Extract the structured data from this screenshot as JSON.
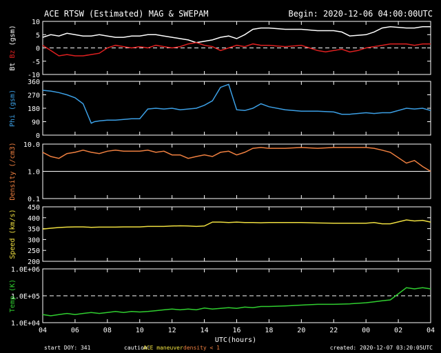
{
  "header": {
    "title": "ACE RTSW (Estimated) MAG & SWEPAM",
    "begin": "Begin: 2020-12-06 04:00:00UTC"
  },
  "footer": {
    "start_doy": "start DOY: 341",
    "caution_label": "caution:",
    "caution_ace": "ACE maneuver",
    "caution_density": "density < 1",
    "created": "created: 2020-12-07 03:20:05UTC"
  },
  "colors": {
    "bt": "#ffffff",
    "bz": "#e02020",
    "phi": "#3ca0e6",
    "density": "#f08040",
    "speed": "#f0e040",
    "temp": "#30d030",
    "caution_ace": "#f0e040",
    "caution_density": "#f08040"
  },
  "chart_data": {
    "type": "line",
    "x_ticks": [
      "04",
      "06",
      "08",
      "10",
      "12",
      "14",
      "16",
      "18",
      "20",
      "22",
      "00",
      "02",
      "04"
    ],
    "x_range_hours": [
      0,
      24
    ],
    "xlabel": "UTC(hours)",
    "panels": [
      {
        "id": "mag",
        "ylabel_parts": [
          "Bt",
          "Bz",
          "(gsm)"
        ],
        "ylim": [
          -10,
          10
        ],
        "yticks": [
          "10",
          "5",
          "0",
          "-5",
          "-10"
        ],
        "reference_line": 0,
        "series": [
          {
            "name": "Bt",
            "color_key": "bt",
            "x": [
              0,
              0.5,
              1,
              1.5,
              2,
              2.5,
              3,
              3.5,
              4,
              4.5,
              5,
              5.5,
              6,
              6.5,
              7,
              7.5,
              8,
              8.5,
              9,
              9.5,
              10,
              10.5,
              11,
              11.5,
              12,
              12.5,
              13,
              13.5,
              14,
              15,
              16,
              17,
              18,
              18.5,
              19,
              20,
              20.5,
              21,
              21.5,
              22.5,
              23,
              23.5,
              24
            ],
            "y": [
              4,
              5,
              4.5,
              5.5,
              5,
              4.5,
              4.5,
              5,
              4.5,
              4,
              4,
              4.5,
              4.5,
              5,
              5,
              4.5,
              4,
              3.5,
              3,
              2,
              2.5,
              3,
              4,
              4.5,
              3.5,
              5,
              7,
              7.5,
              7.5,
              7,
              7,
              6.5,
              6.5,
              6,
              4.5,
              5,
              6,
              7.5,
              8,
              7.5,
              7.5,
              8,
              8
            ]
          },
          {
            "name": "Bz",
            "color_key": "bz",
            "x": [
              0,
              0.5,
              1,
              1.5,
              2,
              2.5,
              3,
              3.5,
              4,
              4.5,
              5,
              5.5,
              6,
              6.5,
              7,
              7.5,
              8,
              8.5,
              9,
              9.5,
              10,
              10.5,
              11,
              11.5,
              12,
              12.5,
              13,
              13.5,
              14,
              15,
              16,
              16.5,
              17,
              17.5,
              18,
              18.5,
              19,
              19.5,
              20,
              20.5,
              21,
              21.5,
              22.5,
              23,
              23.5,
              24
            ],
            "y": [
              1,
              -1,
              -3,
              -2.5,
              -3,
              -3,
              -2.5,
              -2,
              0,
              1,
              0.5,
              0,
              0.5,
              0,
              1,
              0.5,
              0,
              0.5,
              1.5,
              2,
              1,
              0.5,
              -1,
              0,
              1,
              0.5,
              1.5,
              1,
              1,
              0.5,
              1,
              0,
              -1,
              -1.5,
              -1,
              -0.5,
              -1.5,
              -1,
              0,
              0.5,
              1,
              1.5,
              1.5,
              1,
              1.5,
              1.5
            ]
          }
        ]
      },
      {
        "id": "phi",
        "ylabel_parts": [
          "Phi",
          "(gsm)"
        ],
        "ylim": [
          0,
          360
        ],
        "yticks": [
          "360",
          "270",
          "180",
          "90",
          "0"
        ],
        "series": [
          {
            "name": "Phi",
            "color_key": "phi",
            "x": [
              0,
              0.5,
              1,
              1.5,
              2,
              2.5,
              3,
              3.2,
              3.5,
              4,
              4.5,
              5,
              5.5,
              6,
              6.5,
              7,
              7.5,
              8,
              8.5,
              9,
              9.5,
              10,
              10.5,
              11,
              11.5,
              12,
              12.5,
              13,
              13.5,
              14,
              15,
              16,
              17,
              18,
              18.5,
              19,
              20,
              20.5,
              21,
              21.5,
              22.5,
              23,
              23.5,
              24
            ],
            "y": [
              300,
              295,
              285,
              270,
              250,
              210,
              80,
              90,
              95,
              100,
              100,
              105,
              110,
              110,
              175,
              180,
              175,
              180,
              170,
              175,
              180,
              200,
              230,
              320,
              340,
              170,
              165,
              180,
              210,
              190,
              170,
              160,
              160,
              155,
              140,
              140,
              150,
              145,
              150,
              150,
              180,
              175,
              180,
              165
            ]
          }
        ]
      },
      {
        "id": "density",
        "ylabel_parts": [
          "Density",
          "(/cm3)"
        ],
        "ylim": [
          0.1,
          10
        ],
        "log": true,
        "yticks": [
          "10.0",
          "1.0",
          "0.1"
        ],
        "reference_line": 1,
        "series": [
          {
            "name": "Density",
            "color_key": "density",
            "x": [
              0,
              0.5,
              1,
              1.5,
              2,
              2.5,
              3,
              3.5,
              4,
              4.5,
              5,
              5.5,
              6,
              6.5,
              7,
              7.5,
              8,
              8.5,
              9,
              9.5,
              10,
              10.5,
              11,
              11.5,
              12,
              12.5,
              13,
              13.5,
              14,
              15,
              16,
              17,
              18,
              19,
              20,
              20.5,
              21,
              21.5,
              22.5,
              23,
              23.5,
              24
            ],
            "y": [
              5,
              3.5,
              3,
              4.5,
              5,
              6,
              5,
              4.5,
              5.5,
              6,
              5.5,
              5.5,
              5.5,
              6,
              5,
              5.5,
              4,
              4,
              3,
              3.5,
              4,
              3.5,
              5,
              5.5,
              4,
              5,
              7,
              7.5,
              7,
              7,
              7.5,
              7,
              7.5,
              7.5,
              7.5,
              7,
              6,
              5,
              2,
              2.5,
              1.5,
              1
            ]
          }
        ]
      },
      {
        "id": "speed",
        "ylabel_parts": [
          "Speed",
          "(km/s)"
        ],
        "ylim": [
          200,
          450
        ],
        "yticks": [
          "450",
          "400",
          "350",
          "300",
          "250",
          "200"
        ],
        "series": [
          {
            "name": "Speed",
            "color_key": "speed",
            "x": [
              0,
              0.5,
              1,
              1.5,
              2,
              2.5,
              3,
              3.5,
              4,
              4.5,
              5,
              5.5,
              6,
              6.5,
              7,
              7.5,
              8,
              8.5,
              9,
              9.5,
              10,
              10.5,
              11,
              11.5,
              12,
              12.5,
              13,
              13.5,
              14,
              15,
              16,
              17,
              18,
              19,
              20,
              20.5,
              21,
              21.5,
              22.5,
              23,
              23.5,
              24
            ],
            "y": [
              348,
              352,
              355,
              357,
              358,
              358,
              356,
              357,
              357,
              357,
              358,
              358,
              358,
              360,
              360,
              360,
              362,
              363,
              362,
              360,
              362,
              380,
              380,
              378,
              380,
              378,
              378,
              377,
              378,
              378,
              378,
              376,
              375,
              375,
              375,
              378,
              372,
              372,
              390,
              385,
              388,
              380
            ]
          }
        ]
      },
      {
        "id": "temp",
        "ylabel_parts": [
          "Temp",
          "(K)"
        ],
        "ylim": [
          10000,
          1000000
        ],
        "log": true,
        "yticks": [
          "1.0E+06",
          "1.0E+05",
          "1.0E+04"
        ],
        "reference_line": 100000,
        "series": [
          {
            "name": "Temp",
            "color_key": "temp",
            "x": [
              0,
              0.5,
              1,
              1.5,
              2,
              2.5,
              3,
              3.5,
              4,
              4.5,
              5,
              5.5,
              6,
              6.5,
              7,
              7.5,
              8,
              8.5,
              9,
              9.5,
              10,
              10.5,
              11,
              11.5,
              12,
              12.5,
              13,
              13.5,
              14,
              15,
              16,
              17,
              18,
              19,
              20,
              20.5,
              21,
              21.5,
              22.5,
              23,
              23.5,
              24
            ],
            "y": [
              20000,
              18000,
              20000,
              22000,
              20000,
              22000,
              24000,
              22000,
              24000,
              26000,
              24000,
              26000,
              25000,
              26000,
              28000,
              30000,
              32000,
              30000,
              32000,
              30000,
              35000,
              32000,
              34000,
              36000,
              34000,
              38000,
              36000,
              40000,
              40000,
              42000,
              45000,
              48000,
              48000,
              50000,
              55000,
              60000,
              65000,
              70000,
              200000,
              180000,
              200000,
              180000
            ]
          }
        ]
      }
    ]
  }
}
